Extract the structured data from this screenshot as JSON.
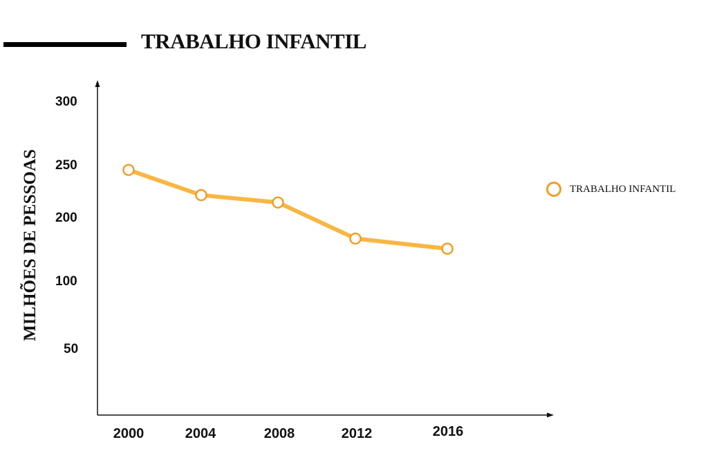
{
  "colors": {
    "series": "#f9b642",
    "marker_stroke": "#f29d27",
    "axis": "#111111"
  },
  "chart_data": {
    "type": "line",
    "title": "TRABALHO INFANTIL",
    "ylabel": "MILHÕES DE PESSOAS",
    "xlabel": "",
    "y_ticks": [
      "300",
      "250",
      "200",
      "100",
      "50"
    ],
    "categories": [
      "2000",
      "2004",
      "2008",
      "2012",
      "2016"
    ],
    "series": [
      {
        "name": "TRABALHO INFANTIL",
        "values": [
          246,
          222,
          215,
          168,
          152
        ]
      }
    ],
    "legend_position": "right",
    "grid": false
  }
}
